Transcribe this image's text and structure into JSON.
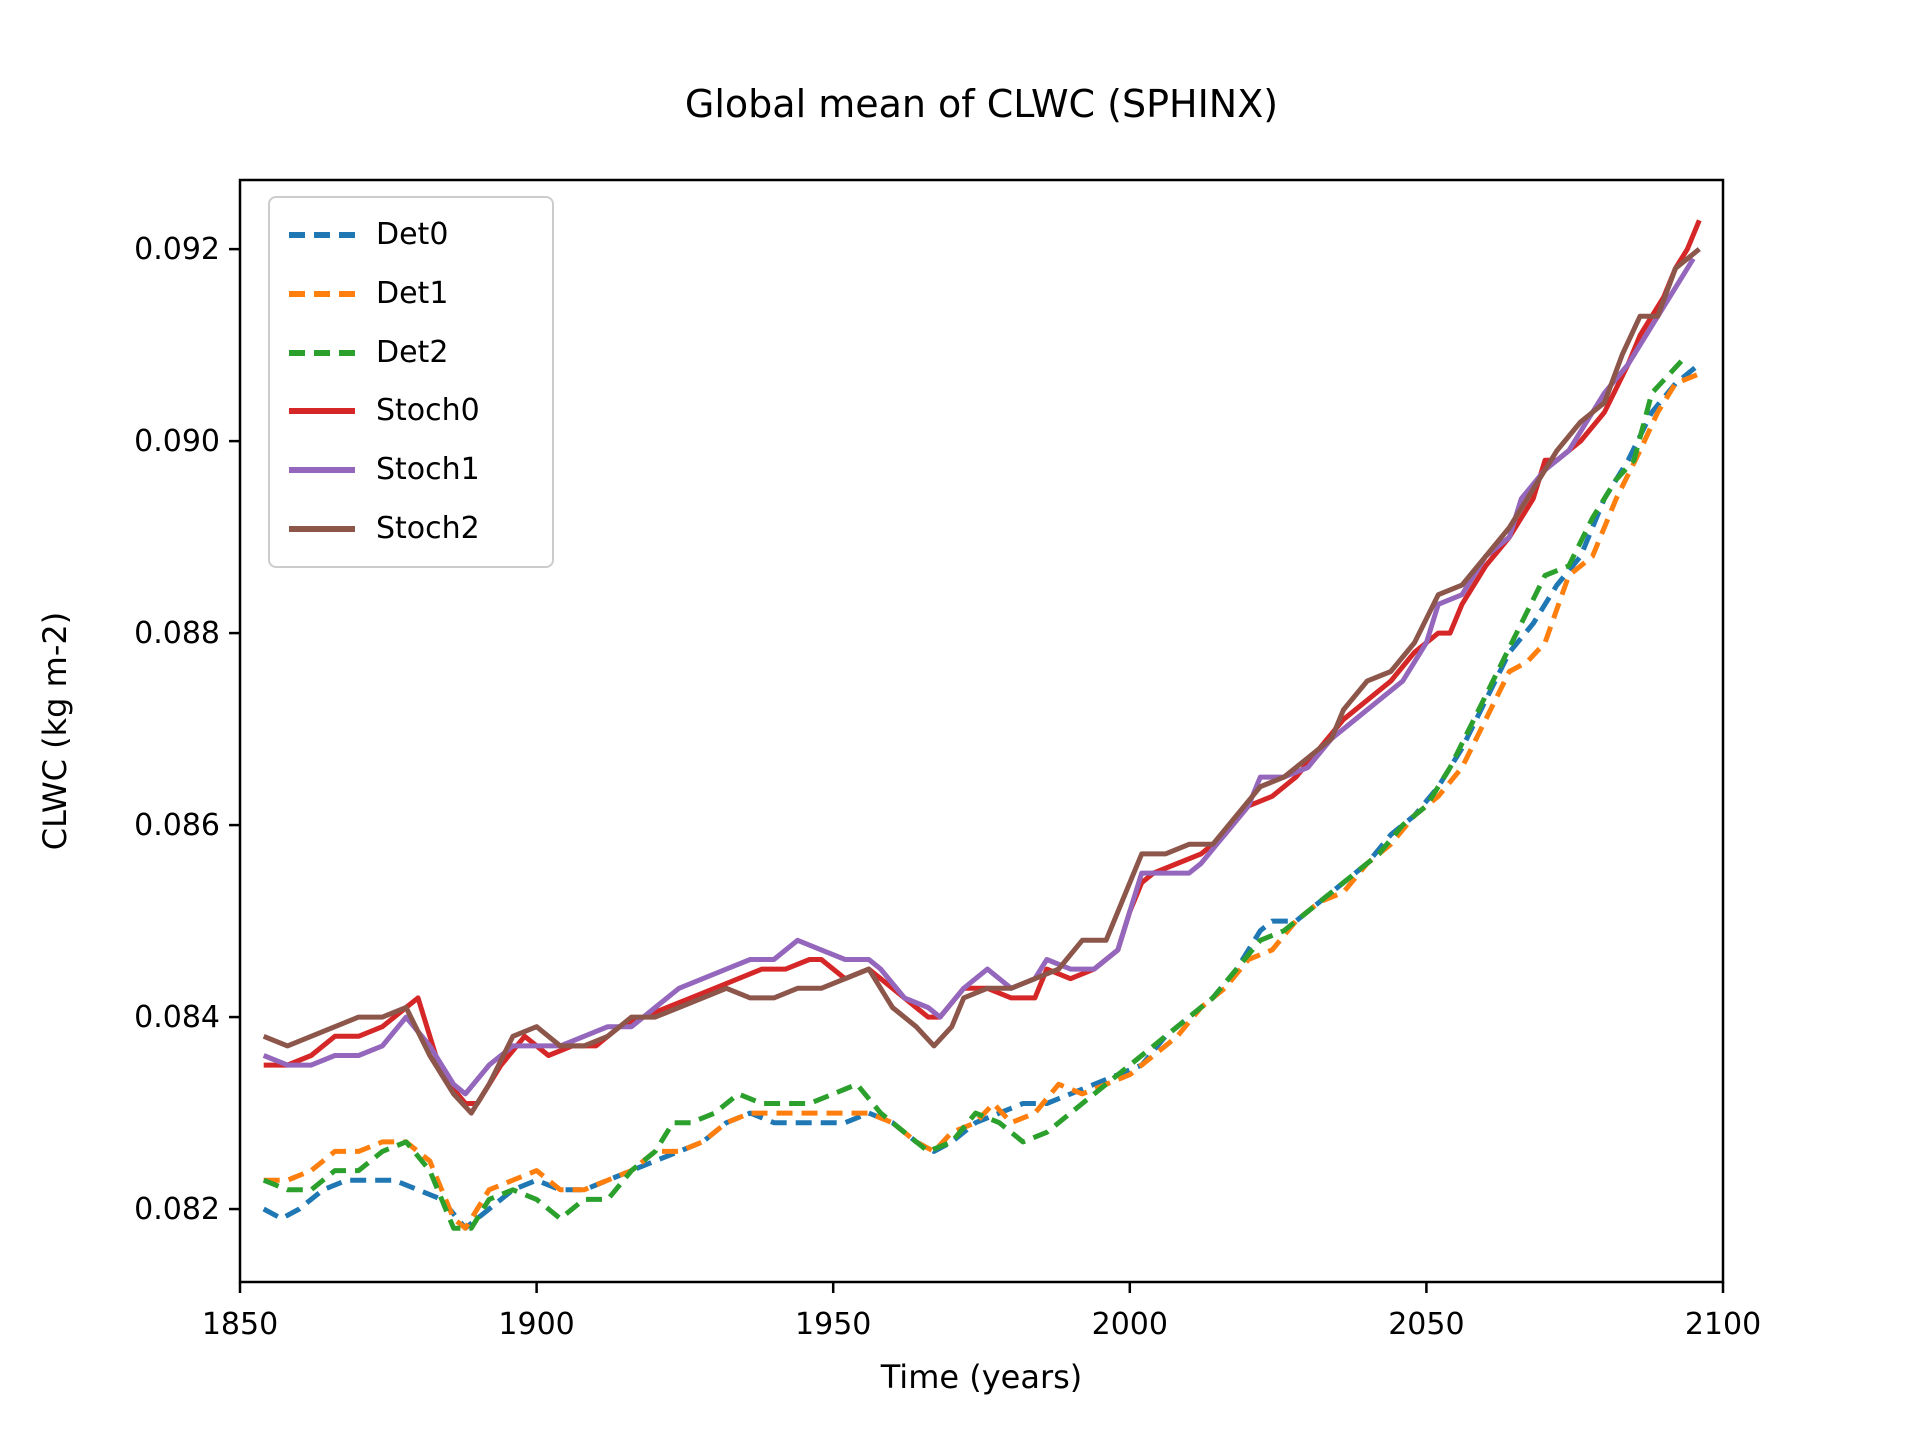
{
  "chart_data": {
    "type": "line",
    "title": "Global mean of CLWC (SPHINX)",
    "xlabel": "Time (years)",
    "ylabel": "CLWC (kg m-2)",
    "xlim": [
      1850,
      2100
    ],
    "ylim": [
      0.08124,
      0.09272
    ],
    "xticks": [
      1850,
      1900,
      1950,
      2000,
      2050,
      2100
    ],
    "xtick_labels": [
      "1850",
      "1900",
      "1950",
      "2000",
      "2050",
      "2100"
    ],
    "yticks": [
      0.082,
      0.084,
      0.086,
      0.088,
      0.09,
      0.092
    ],
    "ytick_labels": [
      "0.082",
      "0.084",
      "0.086",
      "0.088",
      "0.090",
      "0.092"
    ],
    "grid": false,
    "legend_position": "upper left",
    "series": [
      {
        "name": "Det0",
        "color": "#1f77b4",
        "style": "dashed",
        "x": [
          1854,
          1857,
          1860,
          1864,
          1868,
          1872,
          1876,
          1880,
          1884,
          1888,
          1892,
          1896,
          1900,
          1904,
          1908,
          1912,
          1916,
          1920,
          1924,
          1928,
          1932,
          1936,
          1940,
          1944,
          1948,
          1952,
          1956,
          1960,
          1964,
          1967,
          1970,
          1974,
          1978,
          1982,
          1986,
          1990,
          1994,
          1998,
          2002,
          2006,
          2010,
          2014,
          2018,
          2022,
          2024,
          2028,
          2032,
          2036,
          2040,
          2044,
          2048,
          2052,
          2056,
          2060,
          2064,
          2068,
          2072,
          2076,
          2080,
          2084,
          2088,
          2092,
          2096
        ],
        "y": [
          0.082,
          0.0819,
          0.082,
          0.0822,
          0.0823,
          0.0823,
          0.0823,
          0.0822,
          0.0821,
          0.0818,
          0.082,
          0.0822,
          0.0823,
          0.0822,
          0.0822,
          0.0823,
          0.0824,
          0.0825,
          0.0826,
          0.0827,
          0.0829,
          0.083,
          0.0829,
          0.0829,
          0.0829,
          0.0829,
          0.083,
          0.0829,
          0.0827,
          0.0826,
          0.0827,
          0.0829,
          0.083,
          0.0831,
          0.0831,
          0.0832,
          0.0833,
          0.0834,
          0.0835,
          0.0838,
          0.084,
          0.0842,
          0.0845,
          0.0849,
          0.085,
          0.085,
          0.0852,
          0.0854,
          0.0856,
          0.0859,
          0.0861,
          0.0864,
          0.0868,
          0.0873,
          0.0878,
          0.0881,
          0.0885,
          0.0888,
          0.0894,
          0.0898,
          0.0903,
          0.0906,
          0.0908
        ]
      },
      {
        "name": "Det1",
        "color": "#ff7f0e",
        "style": "dashed",
        "x": [
          1854,
          1858,
          1862,
          1866,
          1870,
          1874,
          1878,
          1882,
          1886,
          1888,
          1892,
          1896,
          1900,
          1904,
          1908,
          1912,
          1916,
          1920,
          1924,
          1928,
          1932,
          1936,
          1940,
          1944,
          1948,
          1952,
          1956,
          1960,
          1964,
          1967,
          1970,
          1974,
          1977,
          1980,
          1984,
          1988,
          1992,
          1996,
          2000,
          2004,
          2008,
          2012,
          2016,
          2020,
          2024,
          2028,
          2032,
          2036,
          2040,
          2044,
          2048,
          2052,
          2056,
          2060,
          2064,
          2067,
          2070,
          2074,
          2078,
          2082,
          2086,
          2089,
          2092,
          2096
        ],
        "y": [
          0.0823,
          0.0823,
          0.0824,
          0.0826,
          0.0826,
          0.0827,
          0.0827,
          0.0825,
          0.0819,
          0.0818,
          0.0822,
          0.0823,
          0.0824,
          0.0822,
          0.0822,
          0.0823,
          0.0824,
          0.0826,
          0.0826,
          0.0827,
          0.0829,
          0.083,
          0.083,
          0.083,
          0.083,
          0.083,
          0.083,
          0.0829,
          0.0827,
          0.0826,
          0.0828,
          0.0829,
          0.0831,
          0.0829,
          0.083,
          0.0833,
          0.0832,
          0.0833,
          0.0834,
          0.0836,
          0.0838,
          0.0841,
          0.0843,
          0.0846,
          0.0847,
          0.085,
          0.0852,
          0.0853,
          0.0856,
          0.0858,
          0.0861,
          0.0863,
          0.0866,
          0.0871,
          0.0876,
          0.0877,
          0.0879,
          0.0886,
          0.0888,
          0.0894,
          0.0899,
          0.0903,
          0.0906,
          0.0907
        ]
      },
      {
        "name": "Det2",
        "color": "#2ca02c",
        "style": "dashed",
        "x": [
          1854,
          1858,
          1862,
          1866,
          1870,
          1874,
          1878,
          1882,
          1886,
          1889,
          1892,
          1896,
          1900,
          1904,
          1908,
          1912,
          1916,
          1920,
          1923,
          1926,
          1930,
          1934,
          1938,
          1942,
          1946,
          1950,
          1954,
          1958,
          1962,
          1966,
          1970,
          1974,
          1978,
          1982,
          1986,
          1990,
          1994,
          1998,
          2002,
          2006,
          2010,
          2014,
          2018,
          2022,
          2026,
          2030,
          2034,
          2038,
          2042,
          2046,
          2050,
          2054,
          2058,
          2062,
          2066,
          2070,
          2074,
          2078,
          2082,
          2085,
          2088,
          2091,
          2094
        ],
        "y": [
          0.0823,
          0.0822,
          0.0822,
          0.0824,
          0.0824,
          0.0826,
          0.0827,
          0.0824,
          0.0818,
          0.0818,
          0.0821,
          0.0822,
          0.0821,
          0.0819,
          0.0821,
          0.0821,
          0.0824,
          0.0826,
          0.0829,
          0.0829,
          0.083,
          0.0832,
          0.0831,
          0.0831,
          0.0831,
          0.0832,
          0.0833,
          0.083,
          0.0828,
          0.0826,
          0.0827,
          0.083,
          0.0829,
          0.0827,
          0.0828,
          0.083,
          0.0832,
          0.0834,
          0.0836,
          0.0838,
          0.084,
          0.0842,
          0.0845,
          0.0848,
          0.0849,
          0.0851,
          0.0853,
          0.0855,
          0.0857,
          0.086,
          0.0862,
          0.0866,
          0.0871,
          0.0876,
          0.0881,
          0.0886,
          0.0887,
          0.0892,
          0.0896,
          0.0898,
          0.0905,
          0.0907,
          0.0909
        ]
      },
      {
        "name": "Stoch0",
        "color": "#d62728",
        "style": "solid",
        "x": [
          1854,
          1858,
          1862,
          1866,
          1870,
          1874,
          1878,
          1880,
          1884,
          1888,
          1890,
          1894,
          1898,
          1902,
          1906,
          1910,
          1914,
          1918,
          1922,
          1926,
          1930,
          1934,
          1938,
          1942,
          1946,
          1948,
          1952,
          1956,
          1960,
          1964,
          1966,
          1968,
          1972,
          1976,
          1980,
          1984,
          1986,
          1990,
          1994,
          1998,
          2000,
          2002,
          2004,
          2008,
          2012,
          2016,
          2020,
          2024,
          2028,
          2032,
          2036,
          2040,
          2044,
          2048,
          2052,
          2054,
          2056,
          2060,
          2064,
          2068,
          2070,
          2072,
          2076,
          2080,
          2084,
          2086,
          2090,
          2092,
          2094,
          2096
        ],
        "y": [
          0.0835,
          0.0835,
          0.0836,
          0.0838,
          0.0838,
          0.0839,
          0.0841,
          0.0842,
          0.0834,
          0.0831,
          0.0831,
          0.0835,
          0.0838,
          0.0836,
          0.0837,
          0.0837,
          0.0839,
          0.084,
          0.0841,
          0.0842,
          0.0843,
          0.0844,
          0.0845,
          0.0845,
          0.0846,
          0.0846,
          0.0844,
          0.0845,
          0.0843,
          0.0841,
          0.084,
          0.084,
          0.0843,
          0.0843,
          0.0842,
          0.0842,
          0.0845,
          0.0844,
          0.0845,
          0.0847,
          0.0851,
          0.0854,
          0.0855,
          0.0856,
          0.0857,
          0.0859,
          0.0862,
          0.0863,
          0.0865,
          0.0868,
          0.0871,
          0.0873,
          0.0875,
          0.0878,
          0.088,
          0.088,
          0.0883,
          0.0887,
          0.089,
          0.0894,
          0.0898,
          0.0898,
          0.09,
          0.0903,
          0.0908,
          0.0911,
          0.0915,
          0.0918,
          0.092,
          0.0923
        ]
      },
      {
        "name": "Stoch1",
        "color": "#9467bd",
        "style": "solid",
        "x": [
          1854,
          1858,
          1862,
          1866,
          1870,
          1874,
          1878,
          1882,
          1886,
          1888,
          1892,
          1896,
          1900,
          1904,
          1908,
          1912,
          1916,
          1920,
          1924,
          1928,
          1932,
          1936,
          1940,
          1944,
          1948,
          1952,
          1956,
          1958,
          1962,
          1966,
          1968,
          1972,
          1976,
          1980,
          1984,
          1986,
          1990,
          1994,
          1998,
          2002,
          2006,
          2010,
          2012,
          2016,
          2020,
          2022,
          2026,
          2030,
          2034,
          2038,
          2042,
          2046,
          2050,
          2052,
          2056,
          2060,
          2064,
          2066,
          2070,
          2074,
          2076,
          2080,
          2084,
          2088,
          2090,
          2094,
          2095
        ],
        "y": [
          0.0836,
          0.0835,
          0.0835,
          0.0836,
          0.0836,
          0.0837,
          0.084,
          0.0837,
          0.0833,
          0.0832,
          0.0835,
          0.0837,
          0.0837,
          0.0837,
          0.0838,
          0.0839,
          0.0839,
          0.0841,
          0.0843,
          0.0844,
          0.0845,
          0.0846,
          0.0846,
          0.0848,
          0.0847,
          0.0846,
          0.0846,
          0.0845,
          0.0842,
          0.0841,
          0.084,
          0.0843,
          0.0845,
          0.0843,
          0.0844,
          0.0846,
          0.0845,
          0.0845,
          0.0847,
          0.0855,
          0.0855,
          0.0855,
          0.0856,
          0.0859,
          0.0862,
          0.0865,
          0.0865,
          0.0866,
          0.0869,
          0.0871,
          0.0873,
          0.0875,
          0.0879,
          0.0883,
          0.0884,
          0.0888,
          0.089,
          0.0894,
          0.0897,
          0.0899,
          0.0901,
          0.0905,
          0.0908,
          0.0912,
          0.0914,
          0.0918,
          0.0919
        ]
      },
      {
        "name": "Stoch2",
        "color": "#8c564b",
        "style": "solid",
        "x": [
          1854,
          1858,
          1862,
          1866,
          1870,
          1874,
          1878,
          1882,
          1886,
          1889,
          1892,
          1896,
          1900,
          1904,
          1908,
          1912,
          1916,
          1920,
          1924,
          1928,
          1932,
          1936,
          1940,
          1944,
          1948,
          1952,
          1956,
          1960,
          1964,
          1967,
          1970,
          1972,
          1976,
          1980,
          1984,
          1988,
          1992,
          1996,
          2000,
          2002,
          2006,
          2010,
          2014,
          2018,
          2022,
          2026,
          2030,
          2034,
          2036,
          2040,
          2044,
          2048,
          2052,
          2056,
          2060,
          2064,
          2068,
          2072,
          2076,
          2080,
          2083,
          2086,
          2089,
          2092,
          2094,
          2096
        ],
        "y": [
          0.0838,
          0.0837,
          0.0838,
          0.0839,
          0.084,
          0.084,
          0.0841,
          0.0836,
          0.0832,
          0.083,
          0.0833,
          0.0838,
          0.0839,
          0.0837,
          0.0837,
          0.0838,
          0.084,
          0.084,
          0.0841,
          0.0842,
          0.0843,
          0.0842,
          0.0842,
          0.0843,
          0.0843,
          0.0844,
          0.0845,
          0.0841,
          0.0839,
          0.0837,
          0.0839,
          0.0842,
          0.0843,
          0.0843,
          0.0844,
          0.0845,
          0.0848,
          0.0848,
          0.0854,
          0.0857,
          0.0857,
          0.0858,
          0.0858,
          0.0861,
          0.0864,
          0.0865,
          0.0867,
          0.0869,
          0.0872,
          0.0875,
          0.0876,
          0.0879,
          0.0884,
          0.0885,
          0.0888,
          0.0891,
          0.0895,
          0.0899,
          0.0902,
          0.0904,
          0.0909,
          0.0913,
          0.0913,
          0.0918,
          0.0919,
          0.092
        ]
      }
    ]
  }
}
